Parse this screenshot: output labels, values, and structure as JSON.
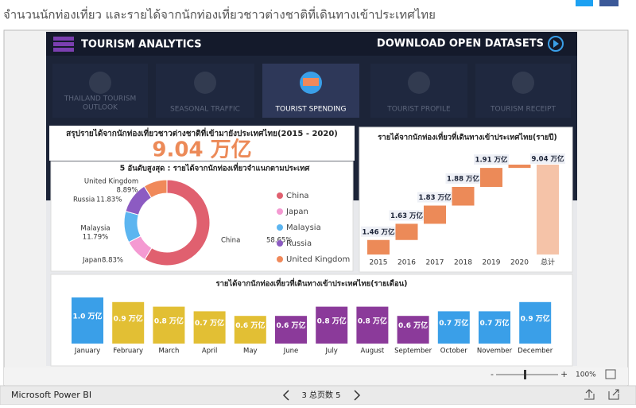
{
  "page_title": "จำนวนนักท่องเที่ยว และรายได้จากนักท่องเที่ยวชาวต่างชาติที่เดินทางเข้าประเทศไทย",
  "dashboard": {
    "brand": "TOURISM ANALYTICS",
    "download": "DOWNLOAD OPEN DATASETS",
    "nav": [
      [
        "THAILAND TOURISM",
        "OUTLOOK"
      ],
      [
        "SEASONAL TRAFFIC"
      ],
      [
        "TOURIST SPENDING"
      ],
      [
        "TOURIST PROFILE"
      ],
      [
        "TOURISM RECEIPT"
      ]
    ]
  },
  "summary": {
    "title": "สรุปรายได้จากนักท่องเที่ยวชาวต่างชาติที่เข้ามายังประเทศไทย(2015 - 2020)",
    "value": "9.04 万亿"
  },
  "donut_chart": {
    "type": "pie",
    "title": "5 อันดับสูงสุด : รายได้จากนักท่องเที่ยวจำแนกตามประเทศ",
    "categories": [
      "China",
      "Japan",
      "Malaysia",
      "Russia",
      "United Kingdom"
    ],
    "values": [
      58.65,
      8.83,
      11.79,
      11.83,
      8.89
    ],
    "value_labels": [
      "58.65%",
      "8.83%",
      "11.79%",
      "11.83%",
      "8.89%"
    ],
    "colors": [
      "#e0606f",
      "#f49ad2",
      "#5cb5f0",
      "#8c5bc2",
      "#f0895a"
    ]
  },
  "waterfall_chart": {
    "type": "waterfall",
    "title": "รายได้จากนักท่องเที่ยวที่เดินทางเข้าประเทศไทย(รายปี)",
    "categories": [
      "2015",
      "2016",
      "2017",
      "2018",
      "2019",
      "2020"
    ],
    "values": [
      1.46,
      1.63,
      1.83,
      1.88,
      1.91,
      0.33
    ],
    "value_labels": [
      "1.46 万亿",
      "1.63 万亿",
      "1.83 万亿",
      "1.88 万亿",
      "1.91 万亿",
      null
    ],
    "total_category": "总计",
    "total": 9.04,
    "total_label": "9.04 万亿",
    "color": "#ec8a58",
    "total_color": "#f5c3a8"
  },
  "monthly_chart": {
    "type": "bar",
    "title": "รายได้จากนักท่องเที่ยวที่เดินทางเข้าประเทศไทย(รายเดือน)",
    "categories": [
      "January",
      "February",
      "March",
      "April",
      "May",
      "June",
      "July",
      "August",
      "September",
      "October",
      "November",
      "December"
    ],
    "values": [
      1.0,
      0.9,
      0.8,
      0.7,
      0.6,
      0.6,
      0.8,
      0.8,
      0.6,
      0.7,
      0.7,
      0.9
    ],
    "value_labels": [
      "1.0 万亿",
      "0.9 万亿",
      "0.8 万亿",
      "0.7 万亿",
      "0.6 万亿",
      "0.6 万亿",
      "0.8 万亿",
      "0.8 万亿",
      "0.6 万亿",
      "0.7 万亿",
      "0.7 万亿",
      "0.9 万亿"
    ],
    "colors": [
      "#3a9fe8",
      "#e2bf34",
      "#e2bf34",
      "#e2bf34",
      "#e2bf34",
      "#8b3a9a",
      "#8b3a9a",
      "#8b3a9a",
      "#8b3a9a",
      "#3a9fe8",
      "#3a9fe8",
      "#3a9fe8"
    ]
  },
  "footer": {
    "zoom": "100%",
    "app": "Microsoft Power BI",
    "pager": "3 总页数 5"
  }
}
